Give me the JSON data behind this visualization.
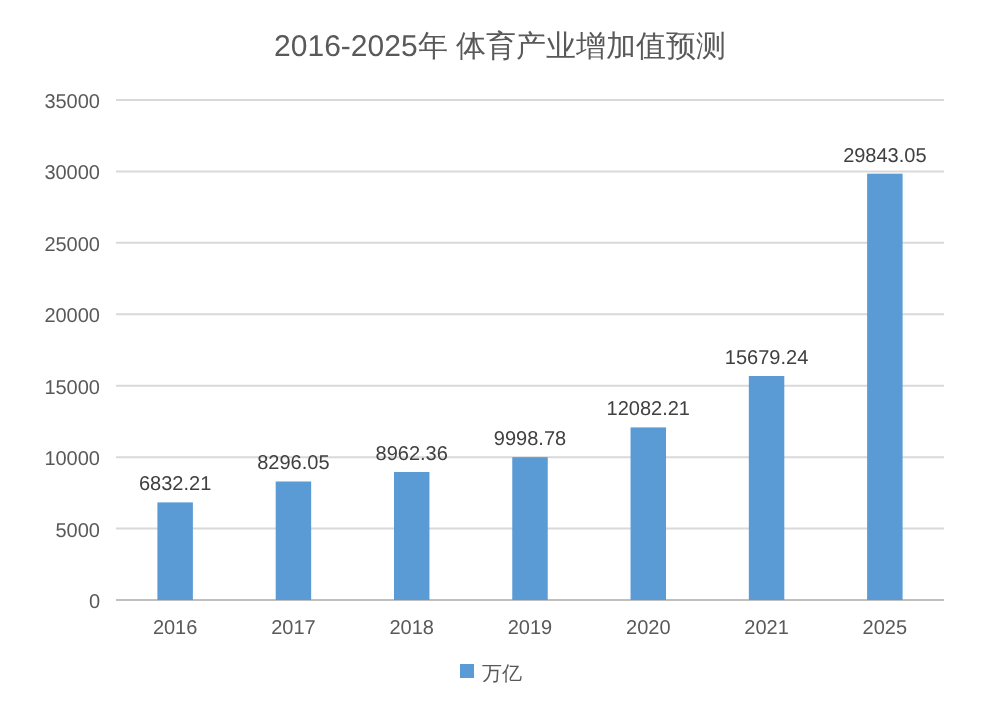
{
  "chart_data": {
    "type": "bar",
    "title": "2016-2025年 体育产业增加值预测",
    "categories": [
      "2016",
      "2017",
      "2018",
      "2019",
      "2020",
      "2021",
      "2025"
    ],
    "series": [
      {
        "name": "万亿",
        "color": "#5b9bd5",
        "values": [
          6832.21,
          8296.05,
          8962.36,
          9998.78,
          12082.21,
          15679.24,
          29843.05
        ]
      }
    ],
    "ylim": [
      0,
      35000
    ],
    "yticks": [
      0,
      5000,
      10000,
      15000,
      20000,
      25000,
      30000,
      35000
    ],
    "grid": "y",
    "legend": "bottom",
    "data_labels": true
  }
}
